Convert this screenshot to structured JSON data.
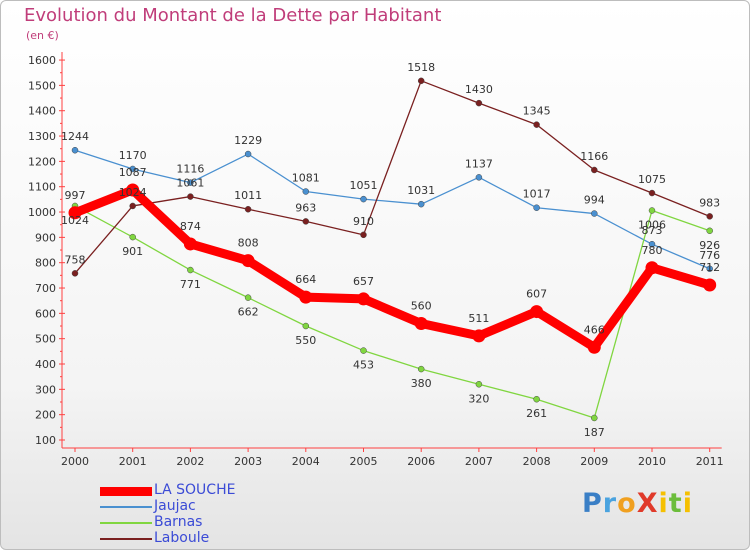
{
  "title": "Evolution du Montant de la Dette par Habitant",
  "unit_label": "(en €)",
  "logo_text": "ProXiti",
  "chart_data": {
    "type": "line",
    "title": "Evolution du Montant de la Dette par Habitant",
    "ylabel": "(en €)",
    "xlabel": "",
    "ylim": [
      100,
      1600
    ],
    "y_ticks": [
      100,
      200,
      300,
      400,
      500,
      600,
      700,
      800,
      900,
      1000,
      1100,
      1200,
      1300,
      1400,
      1500,
      1600
    ],
    "x": [
      "2000",
      "2001",
      "2002",
      "2003",
      "2004",
      "2005",
      "2006",
      "2007",
      "2008",
      "2009",
      "2010",
      "2011"
    ],
    "grid": false,
    "legend_position": "bottom-left",
    "series": [
      {
        "name": "LA SOUCHE",
        "color": "#ff0000",
        "values": [
          997,
          1087,
          874,
          808,
          664,
          657,
          560,
          511,
          607,
          466,
          780,
          712
        ]
      },
      {
        "name": "Jaujac",
        "color": "#4a90d0",
        "values": [
          1244,
          1170,
          1116,
          1229,
          1081,
          1051,
          1031,
          1137,
          1017,
          994,
          873,
          776
        ]
      },
      {
        "name": "Barnas",
        "color": "#80d640",
        "values": [
          1024,
          901,
          771,
          662,
          550,
          453,
          380,
          320,
          261,
          187,
          1006,
          926
        ]
      },
      {
        "name": "Laboule",
        "color": "#7a2020",
        "values": [
          758,
          1024,
          1061,
          1011,
          963,
          910,
          1518,
          1430,
          1345,
          1166,
          1075,
          983
        ]
      }
    ]
  }
}
